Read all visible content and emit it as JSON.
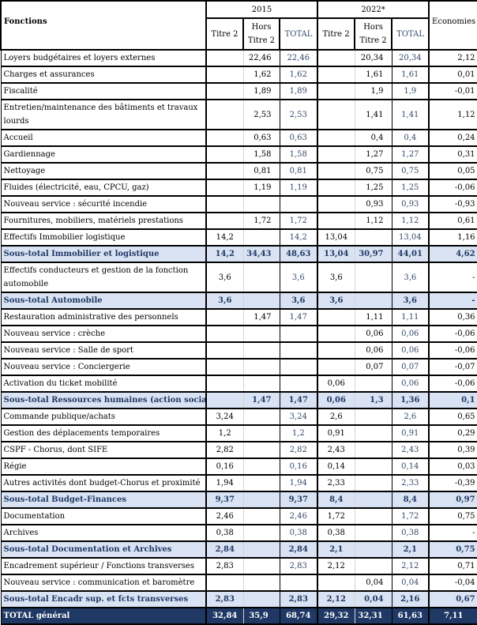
{
  "header": {
    "fonctions": "Fonctions",
    "year1": "2015",
    "year2": "2022*",
    "economies": "Economies",
    "titre2": "Titre 2",
    "hors_titre2_l1": "Hors",
    "hors_titre2_l2": "Titre 2",
    "total": "TOTAL"
  },
  "colors": {
    "subtotal_bg": "#dae3f3",
    "subtotal_text": "#1f3864",
    "total_bg": "#1f3864"
  },
  "rows": [
    {
      "label": "Loyers budgétaires et loyers externes",
      "type": "normal",
      "values": [
        "",
        "22,46",
        "22,46",
        "",
        "20,34",
        "20,34",
        "2,12"
      ]
    },
    {
      "label": "Charges et assurances",
      "type": "normal",
      "values": [
        "",
        "1,62",
        "1,62",
        "",
        "1,61",
        "1,61",
        "0,01"
      ]
    },
    {
      "label": "Fiscalité",
      "type": "normal",
      "values": [
        "",
        "1,89",
        "1,89",
        "",
        "1,9",
        "1,9",
        "-0,01"
      ]
    },
    {
      "label": "Entretien/maintenance des bâtiments et travaux lourds",
      "type": "double",
      "values": [
        "",
        "2,53",
        "2,53",
        "",
        "1,41",
        "1,41",
        "1,12"
      ]
    },
    {
      "label": "Accueil",
      "type": "normal",
      "values": [
        "",
        "0,63",
        "0,63",
        "",
        "0,4",
        "0,4",
        "0,24"
      ]
    },
    {
      "label": "Gardiennage",
      "type": "normal",
      "values": [
        "",
        "1,58",
        "1,58",
        "",
        "1,27",
        "1,27",
        "0,31"
      ]
    },
    {
      "label": "Nettoyage",
      "type": "normal",
      "values": [
        "",
        "0,81",
        "0,81",
        "",
        "0,75",
        "0,75",
        "0,05"
      ]
    },
    {
      "label": "Fluides (électricité, eau, CPCU, gaz)",
      "type": "normal",
      "values": [
        "",
        "1,19",
        "1,19",
        "",
        "1,25",
        "1,25",
        "-0,06"
      ]
    },
    {
      "label": "Nouveau service : sécurité incendie",
      "type": "normal",
      "values": [
        "",
        "",
        "",
        "",
        "0,93",
        "0,93",
        "-0,93"
      ]
    },
    {
      "label": "Fournitures, mobiliers, matériels  prestations",
      "type": "normal",
      "values": [
        "",
        "1,72",
        "1,72",
        "",
        "1,12",
        "1,12",
        "0,61"
      ]
    },
    {
      "label": "Effectifs Immobilier logistique",
      "type": "normal",
      "values": [
        "14,2",
        "",
        "14,2",
        "13,04",
        "",
        "13,04",
        "1,16"
      ]
    },
    {
      "label": "Sous-total Immobilier et logistique",
      "type": "sub",
      "values": [
        "14,2",
        "34,43",
        "48,63",
        "13,04",
        "30,97",
        "44,01",
        "4,62"
      ]
    },
    {
      "label": "Effectifs conducteurs et gestion de la fonction automobile",
      "type": "double",
      "values": [
        "3,6",
        "",
        "3,6",
        "3,6",
        "",
        "3,6",
        "-"
      ]
    },
    {
      "label": "Sous-total Automobile",
      "type": "sub",
      "values": [
        "3,6",
        "",
        "3,6",
        "3,6",
        "",
        "3,6",
        "-"
      ]
    },
    {
      "label": "Restauration administrative des personnels",
      "type": "normal",
      "values": [
        "",
        "1,47",
        "1,47",
        "",
        "1,11",
        "1,11",
        "0,36"
      ]
    },
    {
      "label": "Nouveau service : crèche",
      "type": "normal",
      "values": [
        "",
        "",
        "",
        "",
        "0,06",
        "0,06",
        "-0,06"
      ]
    },
    {
      "label": "Nouveau service : Salle de sport",
      "type": "normal",
      "values": [
        "",
        "",
        "",
        "",
        "0,06",
        "0,06",
        "-0,06"
      ]
    },
    {
      "label": "Nouveau service : Conciergerie",
      "type": "normal",
      "values": [
        "",
        "",
        "",
        "",
        "0,07",
        "0,07",
        "-0,07"
      ]
    },
    {
      "label": "Activation du ticket mobilité",
      "type": "normal",
      "values": [
        "",
        "",
        "",
        "0,06",
        "",
        "0,06",
        "-0,06"
      ]
    },
    {
      "label": "Sous-total Ressources humaines  (action sociale)",
      "type": "sub",
      "values": [
        "",
        "1,47",
        "1,47",
        "0,06",
        "1,3",
        "1,36",
        "0,1"
      ]
    },
    {
      "label": "Commande publique/achats",
      "type": "normal",
      "values": [
        "3,24",
        "",
        "3,24",
        "2,6",
        "",
        "2,6",
        "0,65"
      ]
    },
    {
      "label": "Gestion des déplacements temporaires",
      "type": "normal",
      "values": [
        "1,2",
        "",
        "1,2",
        "0,91",
        "",
        "0,91",
        "0,29"
      ]
    },
    {
      "label": "CSPF - Chorus, dont SIFE",
      "type": "normal",
      "values": [
        "2,82",
        "",
        "2,82",
        "2,43",
        "",
        "2,43",
        "0,39"
      ]
    },
    {
      "label": "Régie",
      "type": "normal",
      "values": [
        "0,16",
        "",
        "0,16",
        "0,14",
        "",
        "0,14",
        "0,03"
      ]
    },
    {
      "label": "Autres activités dont budget-Chorus et proximité",
      "type": "normal",
      "values": [
        "1,94",
        "",
        "1,94",
        "2,33",
        "",
        "2,33",
        "-0,39"
      ]
    },
    {
      "label": "Sous-total Budget-Finances",
      "type": "sub",
      "values": [
        "9,37",
        "",
        "9,37",
        "8,4",
        "",
        "8,4",
        "0,97"
      ]
    },
    {
      "label": "Documentation",
      "type": "normal",
      "values": [
        "2,46",
        "",
        "2,46",
        "1,72",
        "",
        "1,72",
        "0,75"
      ]
    },
    {
      "label": "Archives",
      "type": "normal",
      "values": [
        "0,38",
        "",
        "0,38",
        "0,38",
        "",
        "0,38",
        "-"
      ]
    },
    {
      "label": "Sous-total Documentation et Archives",
      "type": "sub",
      "values": [
        "2,84",
        "",
        "2,84",
        "2,1",
        "",
        "2,1",
        "0,75"
      ]
    },
    {
      "label": "Encadrement supérieur / Fonctions transverses",
      "type": "normal",
      "values": [
        "2,83",
        "",
        "2,83",
        "2,12",
        "",
        "2,12",
        "0,71"
      ]
    },
    {
      "label": "Nouveau service : communication et baromètre",
      "type": "normal",
      "values": [
        "",
        "",
        "",
        "",
        "0,04",
        "0,04",
        "-0,04"
      ]
    },
    {
      "label": "Sous-total Encadr sup. et fcts transverses",
      "type": "sub",
      "values": [
        "2,83",
        "",
        "2,83",
        "2,12",
        "0,04",
        "2,16",
        "0,67"
      ]
    },
    {
      "label": "TOTAL général",
      "type": "tot",
      "values": [
        "32,84",
        "35,9",
        "68,74",
        "29,32",
        "32,31",
        "61,63",
        "7,11"
      ]
    }
  ]
}
